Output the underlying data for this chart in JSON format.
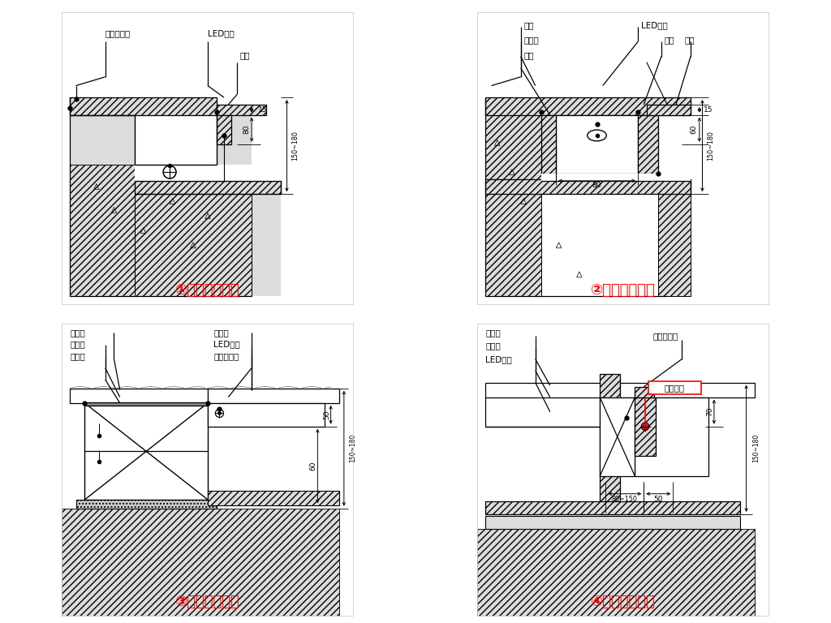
{
  "title1": "①石材踏步照明",
  "title2": "②石材踏步照明",
  "title3": "③木材踏步照明",
  "title4": "④木材踏步照明",
  "title_color": "#FF0000",
  "bg_color": "#FFFFFF",
  "lbl1_1": "砂浆结合层",
  "lbl1_2": "LED灯管",
  "lbl1_3": "石材",
  "lbl2_1": "鄂板",
  "lbl2_2": "LED灯管",
  "lbl2_3": "角钓",
  "lbl2_4": "石材",
  "lbl2_5": "木工板",
  "lbl2_6": "角钓",
  "lbl3_1": "木地板",
  "lbl3_2": "木工板",
  "lbl3_3": "木龙骨",
  "lbl3_4": "木地板",
  "lbl3_5": "LED灯管",
  "lbl3_6": "砂浆结合层",
  "lbl4_1": "木地板",
  "lbl4_2": "不锈钔方管",
  "lbl4_3": "木工板",
  "lbl4_4": "LED灯管",
  "lbl4_5": "透光材料"
}
